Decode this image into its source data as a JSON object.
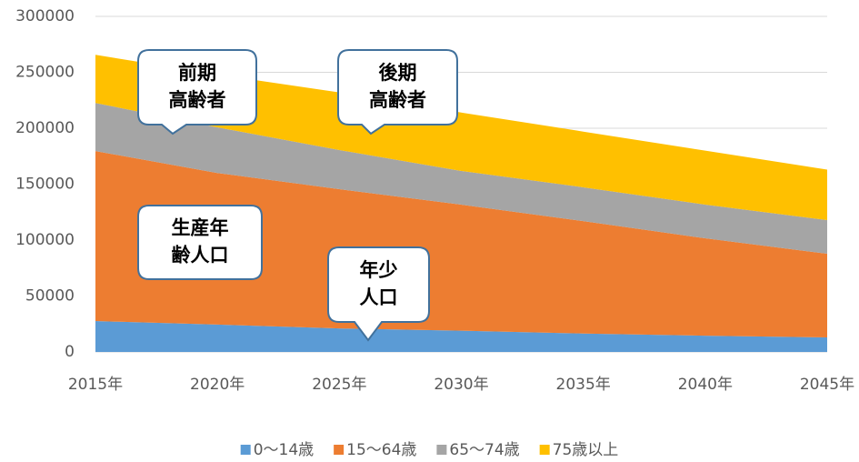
{
  "chart_data": {
    "type": "stacked_area",
    "categories": [
      "2015年",
      "2020年",
      "2025年",
      "2030年",
      "2035年",
      "2040年",
      "2045年"
    ],
    "series": [
      {
        "name": "0〜14歳",
        "color": "#5b9bd5",
        "values": [
          27600,
          24500,
          21000,
          19000,
          16500,
          14500,
          13000
        ]
      },
      {
        "name": "15〜64歳",
        "color": "#ed7d31",
        "values": [
          152000,
          135500,
          124500,
          112700,
          100500,
          87100,
          74800
        ]
      },
      {
        "name": "65〜74歳",
        "color": "#a5a5a5",
        "values": [
          43000,
          40800,
          35000,
          30100,
          30200,
          30100,
          30100
        ]
      },
      {
        "name": "75歳以上",
        "color": "#ffc000",
        "values": [
          43000,
          47200,
          51500,
          52200,
          49800,
          48300,
          45100
        ]
      }
    ],
    "ylim": [
      0,
      300000
    ],
    "yticks": [
      0,
      50000,
      100000,
      150000,
      200000,
      250000,
      300000
    ],
    "grid": true,
    "legend": "bottom",
    "annotations": [
      {
        "text": [
          "前期",
          "高齢者"
        ]
      },
      {
        "text": [
          "後期",
          "高齢者"
        ]
      },
      {
        "text": [
          "生産年",
          "齢人口"
        ]
      },
      {
        "text": [
          "年少",
          "人口"
        ]
      }
    ]
  }
}
